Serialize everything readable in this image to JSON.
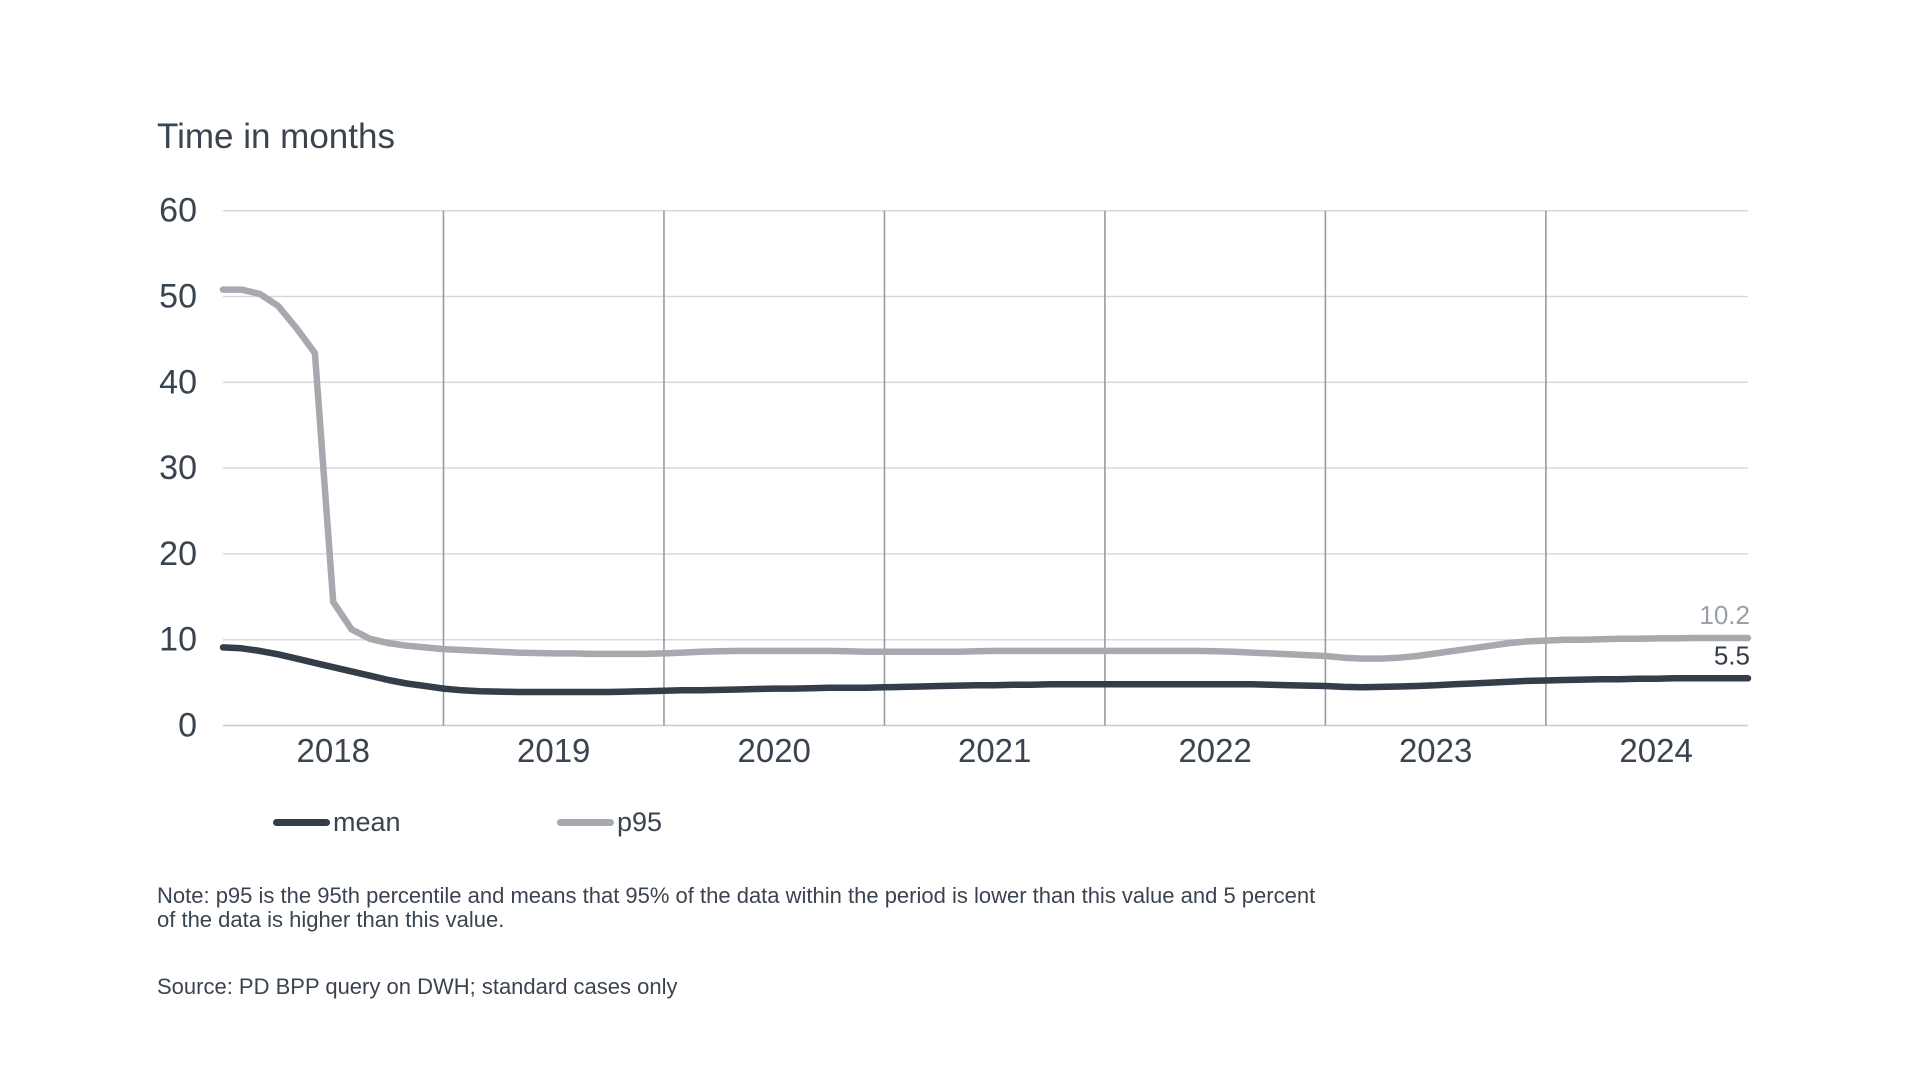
{
  "title": "Time in months",
  "legend": [
    {
      "label": "mean",
      "color": "#333e4a"
    },
    {
      "label": "p95",
      "color": "#a6aaaf"
    }
  ],
  "note": {
    "line1": "Note: p95 is the 95th percentile and means that 95% of the data within the period is lower than this value and 5 percent",
    "line2": "of the data is higher than this value."
  },
  "source": "Source: PD BPP query on DWH; standard cases only",
  "chart_data": {
    "type": "line",
    "title": "Time in months",
    "x_unit": "monthly values, Jan 2018 - Dec 2024",
    "x_tick_labels": [
      "2018",
      "2019",
      "2020",
      "2021",
      "2022",
      "2023",
      "2024"
    ],
    "y_ticks": [
      0,
      10,
      20,
      30,
      40,
      50,
      60
    ],
    "ylim": [
      0,
      60
    ],
    "grid": {
      "horizontal_color": "#d8d9db",
      "zero_axis_color": "#c8cacc",
      "vertical_color": "#969ca2"
    },
    "series": [
      {
        "name": "p95",
        "color": "#a6aaaf",
        "end_label": "10.2",
        "end_label_color": "#9aa0a8",
        "values": [
          50.8,
          50.8,
          50.3,
          48.9,
          46.3,
          43.4,
          14.4,
          11.2,
          10.1,
          9.6,
          9.3,
          9.1,
          8.9,
          8.8,
          8.7,
          8.6,
          8.5,
          8.45,
          8.4,
          8.4,
          8.35,
          8.35,
          8.35,
          8.35,
          8.4,
          8.5,
          8.6,
          8.65,
          8.7,
          8.7,
          8.7,
          8.7,
          8.7,
          8.7,
          8.65,
          8.6,
          8.6,
          8.6,
          8.6,
          8.6,
          8.6,
          8.65,
          8.7,
          8.7,
          8.7,
          8.7,
          8.7,
          8.7,
          8.7,
          8.7,
          8.7,
          8.7,
          8.7,
          8.7,
          8.65,
          8.6,
          8.5,
          8.4,
          8.3,
          8.2,
          8.1,
          7.9,
          7.8,
          7.8,
          7.9,
          8.1,
          8.4,
          8.7,
          9.0,
          9.3,
          9.6,
          9.8,
          9.9,
          10.0,
          10.0,
          10.05,
          10.1,
          10.1,
          10.15,
          10.15,
          10.2,
          10.2,
          10.2,
          10.2
        ]
      },
      {
        "name": "mean",
        "color": "#333e4a",
        "end_label": "5.5",
        "end_label_color": "#333e4a",
        "values": [
          9.1,
          9.0,
          8.7,
          8.3,
          7.8,
          7.3,
          6.8,
          6.3,
          5.8,
          5.3,
          4.9,
          4.6,
          4.3,
          4.1,
          4.0,
          3.95,
          3.9,
          3.9,
          3.9,
          3.9,
          3.9,
          3.9,
          3.95,
          4.0,
          4.05,
          4.1,
          4.1,
          4.15,
          4.2,
          4.25,
          4.3,
          4.3,
          4.35,
          4.4,
          4.4,
          4.4,
          4.45,
          4.5,
          4.55,
          4.6,
          4.65,
          4.7,
          4.7,
          4.75,
          4.75,
          4.8,
          4.8,
          4.8,
          4.8,
          4.8,
          4.8,
          4.8,
          4.8,
          4.8,
          4.8,
          4.8,
          4.8,
          4.75,
          4.7,
          4.65,
          4.6,
          4.5,
          4.45,
          4.5,
          4.55,
          4.6,
          4.7,
          4.8,
          4.9,
          5.0,
          5.1,
          5.2,
          5.25,
          5.3,
          5.35,
          5.4,
          5.4,
          5.45,
          5.45,
          5.5,
          5.5,
          5.5,
          5.5,
          5.5
        ]
      }
    ]
  }
}
